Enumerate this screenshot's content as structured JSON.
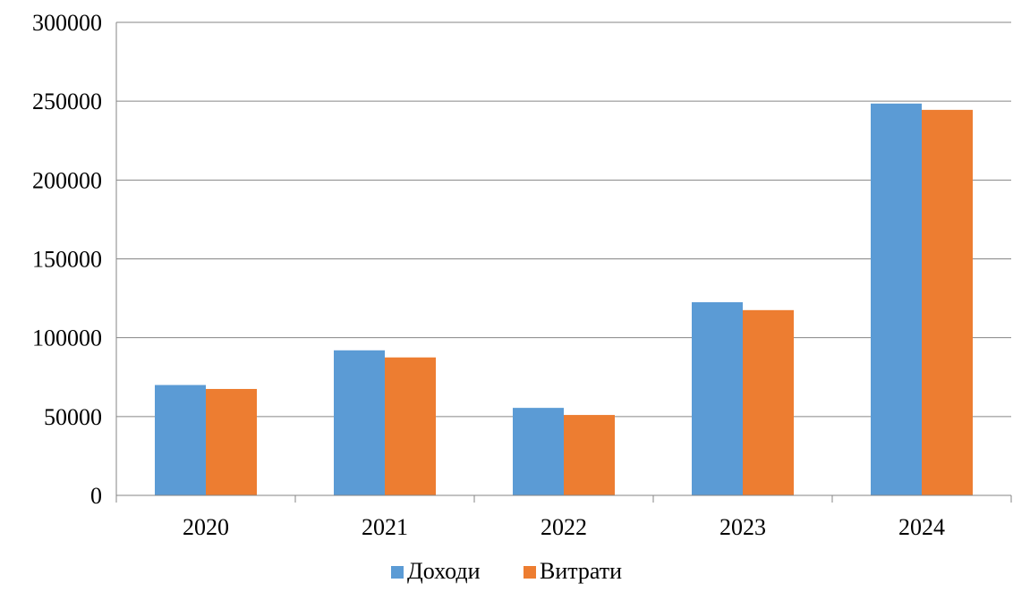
{
  "chart_data": {
    "type": "bar",
    "categories": [
      "2020",
      "2021",
      "2022",
      "2023",
      "2024"
    ],
    "series": [
      {
        "name": "Доходи",
        "color": "#5B9BD5",
        "values": [
          70000,
          92000,
          55500,
          122500,
          248500
        ]
      },
      {
        "name": "Витрати",
        "color": "#ED7D31",
        "values": [
          67500,
          87500,
          51000,
          117500,
          244500
        ]
      }
    ],
    "ylim": [
      0,
      300000
    ],
    "yticks": [
      "0",
      "50000",
      "100000",
      "150000",
      "200000",
      "250000",
      "300000"
    ],
    "grid": true,
    "legend_position": "bottom",
    "title": "",
    "xlabel": "",
    "ylabel": ""
  }
}
